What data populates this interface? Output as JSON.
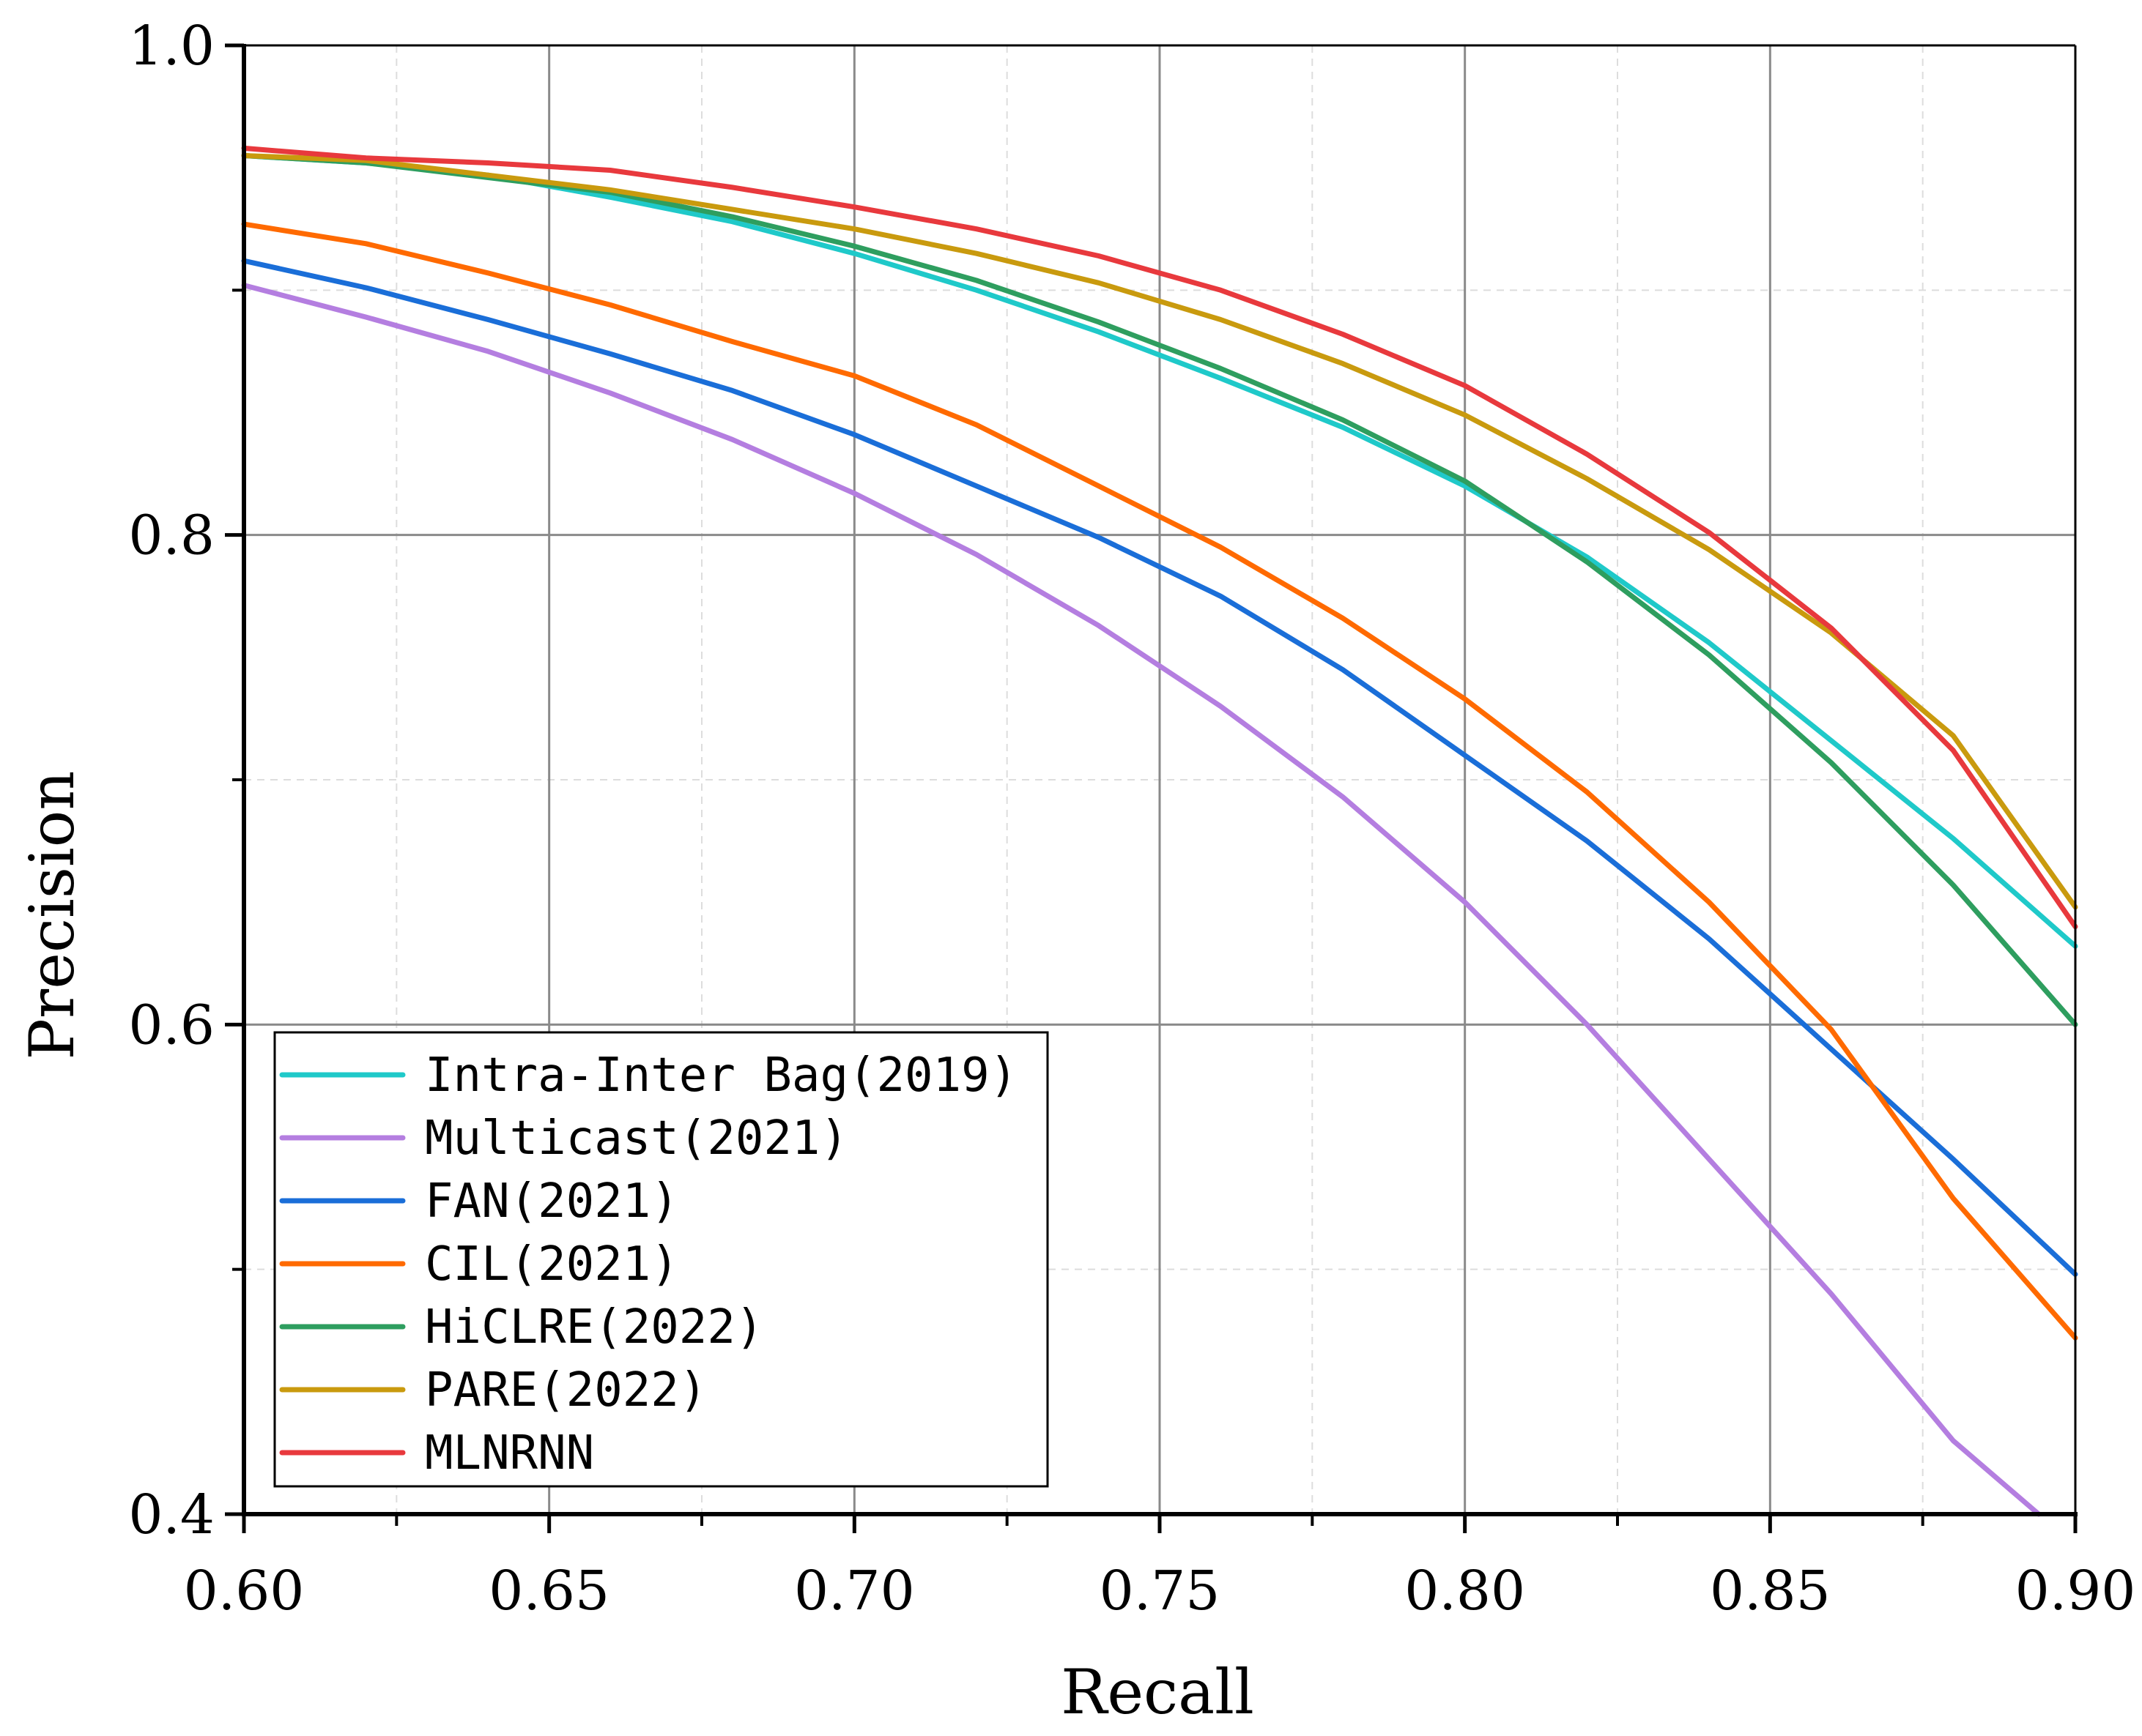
{
  "chart_data": {
    "type": "line",
    "title": "",
    "xlabel": "Recall",
    "ylabel": "Precision",
    "xlim": [
      0.6,
      0.9
    ],
    "ylim": [
      0.4,
      1.0
    ],
    "x_ticks": [
      0.6,
      0.65,
      0.7,
      0.75,
      0.8,
      0.85,
      0.9
    ],
    "x_tick_labels": [
      "0.60",
      "0.65",
      "0.70",
      "0.75",
      "0.80",
      "0.85",
      "0.90"
    ],
    "y_ticks": [
      0.4,
      0.6,
      0.8,
      1.0
    ],
    "y_tick_labels": [
      "0.4",
      "0.6",
      "0.8",
      "1.0"
    ],
    "grid": true,
    "legend_position": "bottom-left",
    "series": [
      {
        "name": "Intra-Inter Bag(2019)",
        "color": "#1FC9C9",
        "x": [
          0.6,
          0.62,
          0.64,
          0.66,
          0.68,
          0.7,
          0.72,
          0.74,
          0.76,
          0.78,
          0.8,
          0.82,
          0.84,
          0.86,
          0.88,
          0.9
        ],
        "y": [
          0.955,
          0.952,
          0.947,
          0.938,
          0.928,
          0.915,
          0.9,
          0.883,
          0.864,
          0.844,
          0.82,
          0.791,
          0.756,
          0.716,
          0.676,
          0.632
        ]
      },
      {
        "name": "Multicast(2021)",
        "color": "#B47EE0",
        "x": [
          0.6,
          0.62,
          0.64,
          0.66,
          0.68,
          0.7,
          0.72,
          0.74,
          0.76,
          0.78,
          0.8,
          0.82,
          0.84,
          0.86,
          0.88,
          0.894
        ],
        "y": [
          0.902,
          0.889,
          0.875,
          0.858,
          0.839,
          0.817,
          0.792,
          0.763,
          0.73,
          0.693,
          0.65,
          0.6,
          0.545,
          0.49,
          0.43,
          0.4
        ]
      },
      {
        "name": "FAN(2021)",
        "color": "#1A6ED8",
        "x": [
          0.6,
          0.62,
          0.64,
          0.66,
          0.68,
          0.7,
          0.72,
          0.74,
          0.76,
          0.78,
          0.8,
          0.82,
          0.84,
          0.86,
          0.88,
          0.9
        ],
        "y": [
          0.912,
          0.901,
          0.888,
          0.874,
          0.859,
          0.841,
          0.82,
          0.799,
          0.775,
          0.745,
          0.71,
          0.675,
          0.635,
          0.59,
          0.545,
          0.498
        ]
      },
      {
        "name": "CIL(2021)",
        "color": "#FF6A00",
        "x": [
          0.6,
          0.62,
          0.64,
          0.66,
          0.68,
          0.7,
          0.72,
          0.74,
          0.76,
          0.78,
          0.8,
          0.82,
          0.84,
          0.86,
          0.88,
          0.9
        ],
        "y": [
          0.927,
          0.919,
          0.907,
          0.894,
          0.879,
          0.865,
          0.845,
          0.82,
          0.795,
          0.766,
          0.733,
          0.695,
          0.65,
          0.598,
          0.529,
          0.472
        ]
      },
      {
        "name": "HiCLRE(2022)",
        "color": "#2E9E5F",
        "x": [
          0.6,
          0.62,
          0.64,
          0.66,
          0.68,
          0.7,
          0.72,
          0.74,
          0.76,
          0.78,
          0.8,
          0.82,
          0.84,
          0.86,
          0.88,
          0.9
        ],
        "y": [
          0.955,
          0.952,
          0.946,
          0.94,
          0.93,
          0.918,
          0.904,
          0.887,
          0.868,
          0.847,
          0.822,
          0.789,
          0.751,
          0.707,
          0.657,
          0.6
        ]
      },
      {
        "name": "PARE(2022)",
        "color": "#C99A0E",
        "x": [
          0.6,
          0.62,
          0.64,
          0.66,
          0.68,
          0.7,
          0.72,
          0.74,
          0.76,
          0.78,
          0.8,
          0.82,
          0.84,
          0.86,
          0.88,
          0.9
        ],
        "y": [
          0.955,
          0.953,
          0.947,
          0.941,
          0.933,
          0.925,
          0.915,
          0.903,
          0.888,
          0.87,
          0.849,
          0.823,
          0.794,
          0.76,
          0.718,
          0.648
        ]
      },
      {
        "name": "MLNRNN",
        "color": "#E8393D",
        "x": [
          0.6,
          0.62,
          0.64,
          0.66,
          0.68,
          0.7,
          0.72,
          0.74,
          0.76,
          0.78,
          0.8,
          0.82,
          0.84,
          0.86,
          0.88,
          0.9
        ],
        "y": [
          0.958,
          0.954,
          0.952,
          0.949,
          0.942,
          0.934,
          0.925,
          0.914,
          0.9,
          0.882,
          0.861,
          0.833,
          0.801,
          0.762,
          0.712,
          0.64
        ]
      }
    ]
  }
}
